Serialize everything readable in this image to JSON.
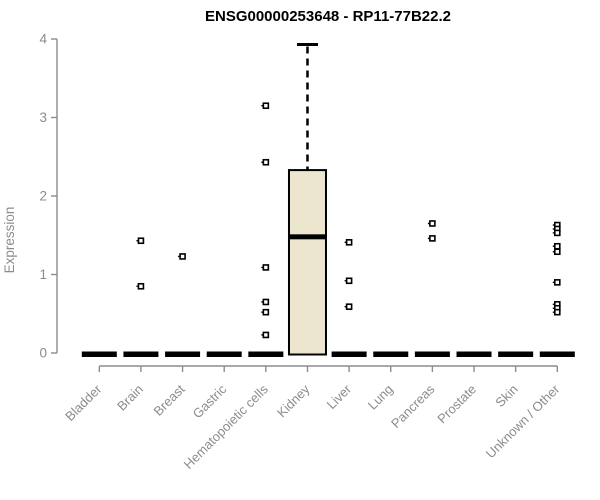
{
  "chart_data": {
    "type": "boxplot",
    "title": "ENSG00000253648 - RP11-77B22.2",
    "ylabel": "Expression",
    "xlabel": "",
    "ylim": [
      0,
      4
    ],
    "yticks": [
      0,
      1,
      2,
      3,
      4
    ],
    "grid": false,
    "legend": false,
    "categories": [
      "Bladder",
      "Brain",
      "Breast",
      "Gastric",
      "Hematopoietic cells",
      "Kidney",
      "Liver",
      "Lung",
      "Pancreas",
      "Prostate",
      "Skin",
      "Unknown / Other"
    ],
    "series": [
      {
        "category": "Bladder",
        "q1": 0,
        "median": 0,
        "q3": 0,
        "whisker_low": 0,
        "whisker_high": 0,
        "outliers": []
      },
      {
        "category": "Brain",
        "q1": 0,
        "median": 0,
        "q3": 0,
        "whisker_low": 0,
        "whisker_high": 0,
        "outliers": [
          1.43,
          0.85
        ]
      },
      {
        "category": "Breast",
        "q1": 0,
        "median": 0,
        "q3": 0,
        "whisker_low": 0,
        "whisker_high": 0,
        "outliers": [
          1.23
        ]
      },
      {
        "category": "Gastric",
        "q1": 0,
        "median": 0,
        "q3": 0,
        "whisker_low": 0,
        "whisker_high": 0,
        "outliers": []
      },
      {
        "category": "Hematopoietic cells",
        "q1": 0,
        "median": 0,
        "q3": 0,
        "whisker_low": 0,
        "whisker_high": 0,
        "outliers": [
          3.15,
          2.43,
          1.09,
          0.65,
          0.52,
          0.23
        ]
      },
      {
        "category": "Kidney",
        "q1": 0,
        "median": 1.48,
        "q3": 2.33,
        "whisker_low": 0,
        "whisker_high": 3.93,
        "outliers": []
      },
      {
        "category": "Liver",
        "q1": 0,
        "median": 0,
        "q3": 0,
        "whisker_low": 0,
        "whisker_high": 0,
        "outliers": [
          1.41,
          0.92,
          0.59
        ]
      },
      {
        "category": "Lung",
        "q1": 0,
        "median": 0,
        "q3": 0,
        "whisker_low": 0,
        "whisker_high": 0,
        "outliers": []
      },
      {
        "category": "Pancreas",
        "q1": 0,
        "median": 0,
        "q3": 0,
        "whisker_low": 0,
        "whisker_high": 0,
        "outliers": [
          1.65,
          1.46
        ]
      },
      {
        "category": "Prostate",
        "q1": 0,
        "median": 0,
        "q3": 0,
        "whisker_low": 0,
        "whisker_high": 0,
        "outliers": []
      },
      {
        "category": "Skin",
        "q1": 0,
        "median": 0,
        "q3": 0,
        "whisker_low": 0,
        "whisker_high": 0,
        "outliers": []
      },
      {
        "category": "Unknown / Other",
        "q1": 0,
        "median": 0,
        "q3": 0,
        "whisker_low": 0,
        "whisker_high": 0,
        "outliers": [
          1.63,
          1.58,
          1.53,
          1.36,
          1.29,
          0.9,
          0.62,
          0.57,
          0.52
        ]
      }
    ],
    "colors": {
      "box_fill": "#ece6ce",
      "box_stroke": "#000000",
      "median": "#000000",
      "whisker": "#000000",
      "outlier": "#000000",
      "axis": "#8c8c8c",
      "tick_text": "#8c8c8c",
      "title_text": "#000000",
      "background": "#ffffff"
    }
  }
}
